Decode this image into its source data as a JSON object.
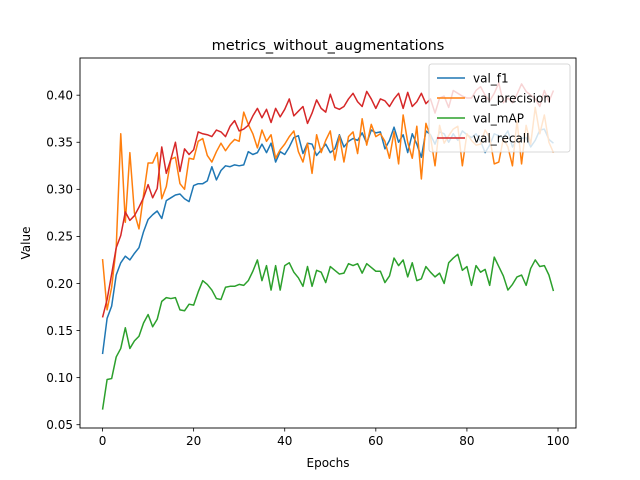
{
  "chart_data": {
    "type": "line",
    "title": "metrics_without_augmentations",
    "xlabel": "Epochs",
    "ylabel": "Value",
    "xlim": [
      -4.95,
      103.95
    ],
    "ylim": [
      0.0465,
      0.4395
    ],
    "xticks": [
      0,
      20,
      40,
      60,
      80,
      100
    ],
    "yticks": [
      0.05,
      0.1,
      0.15,
      0.2,
      0.25,
      0.3,
      0.35,
      0.4
    ],
    "ytick_labels": [
      "0.05",
      "0.10",
      "0.15",
      "0.20",
      "0.25",
      "0.30",
      "0.35",
      "0.40"
    ],
    "legend_position": "top-right",
    "grid": false,
    "series": [
      {
        "name": "val_f1",
        "color": "#1f77b4",
        "values": [
          0.125,
          0.163,
          0.176,
          0.209,
          0.222,
          0.229,
          0.225,
          0.232,
          0.238,
          0.255,
          0.268,
          0.273,
          0.277,
          0.269,
          0.288,
          0.291,
          0.294,
          0.295,
          0.29,
          0.287,
          0.304,
          0.306,
          0.306,
          0.309,
          0.324,
          0.31,
          0.32,
          0.325,
          0.324,
          0.326,
          0.325,
          0.326,
          0.34,
          0.337,
          0.339,
          0.348,
          0.339,
          0.349,
          0.329,
          0.34,
          0.337,
          0.345,
          0.355,
          0.357,
          0.338,
          0.349,
          0.348,
          0.336,
          0.342,
          0.348,
          0.339,
          0.343,
          0.358,
          0.345,
          0.351,
          0.354,
          0.352,
          0.36,
          0.349,
          0.363,
          0.36,
          0.361,
          0.343,
          0.352,
          0.366,
          0.35,
          0.358,
          0.339,
          0.359,
          0.348,
          0.334,
          0.362,
          0.358,
          0.348,
          0.361,
          0.359,
          0.35,
          0.359,
          0.352,
          0.362,
          0.358,
          0.355,
          0.359,
          0.351,
          0.339,
          0.347,
          0.359,
          0.357,
          0.355,
          0.362,
          0.345,
          0.353,
          0.354,
          0.355,
          0.345,
          0.352,
          0.363,
          0.364,
          0.353,
          0.349
        ]
      },
      {
        "name": "val_precision",
        "color": "#ff7f0e",
        "values": [
          0.226,
          0.172,
          0.196,
          0.238,
          0.359,
          0.265,
          0.339,
          0.275,
          0.258,
          0.294,
          0.328,
          0.328,
          0.339,
          0.29,
          0.303,
          0.332,
          0.334,
          0.306,
          0.3,
          0.333,
          0.332,
          0.351,
          0.354,
          0.336,
          0.329,
          0.34,
          0.349,
          0.341,
          0.348,
          0.353,
          0.351,
          0.382,
          0.369,
          0.359,
          0.344,
          0.363,
          0.351,
          0.358,
          0.333,
          0.342,
          0.348,
          0.356,
          0.362,
          0.34,
          0.329,
          0.349,
          0.317,
          0.358,
          0.339,
          0.352,
          0.362,
          0.331,
          0.357,
          0.329,
          0.356,
          0.361,
          0.338,
          0.375,
          0.347,
          0.369,
          0.356,
          0.359,
          0.351,
          0.333,
          0.361,
          0.327,
          0.379,
          0.35,
          0.333,
          0.367,
          0.311,
          0.37,
          0.356,
          0.325,
          0.368,
          0.349,
          0.357,
          0.364,
          0.367,
          0.325,
          0.359,
          0.352,
          0.347,
          0.348,
          0.363,
          0.355,
          0.327,
          0.329,
          0.354,
          0.345,
          0.325,
          0.373,
          0.327,
          0.368,
          0.348,
          0.387,
          0.359,
          0.379,
          0.35,
          0.339
        ]
      },
      {
        "name": "val_mAP",
        "color": "#2ca02c",
        "values": [
          0.066,
          0.098,
          0.099,
          0.122,
          0.131,
          0.153,
          0.131,
          0.139,
          0.144,
          0.158,
          0.167,
          0.154,
          0.162,
          0.181,
          0.185,
          0.184,
          0.185,
          0.172,
          0.171,
          0.178,
          0.177,
          0.191,
          0.203,
          0.199,
          0.193,
          0.184,
          0.183,
          0.196,
          0.197,
          0.197,
          0.199,
          0.198,
          0.203,
          0.213,
          0.225,
          0.203,
          0.219,
          0.193,
          0.219,
          0.193,
          0.219,
          0.222,
          0.212,
          0.206,
          0.197,
          0.218,
          0.197,
          0.214,
          0.212,
          0.201,
          0.218,
          0.214,
          0.21,
          0.211,
          0.221,
          0.219,
          0.221,
          0.211,
          0.221,
          0.217,
          0.213,
          0.213,
          0.201,
          0.208,
          0.227,
          0.219,
          0.225,
          0.207,
          0.222,
          0.203,
          0.205,
          0.218,
          0.212,
          0.207,
          0.211,
          0.2,
          0.222,
          0.227,
          0.231,
          0.214,
          0.218,
          0.198,
          0.219,
          0.212,
          0.215,
          0.198,
          0.228,
          0.218,
          0.208,
          0.193,
          0.199,
          0.207,
          0.209,
          0.198,
          0.216,
          0.225,
          0.218,
          0.219,
          0.209,
          0.192
        ]
      },
      {
        "name": "val_recall",
        "color": "#d62728",
        "values": [
          0.164,
          0.183,
          0.21,
          0.238,
          0.251,
          0.276,
          0.267,
          0.272,
          0.281,
          0.291,
          0.305,
          0.291,
          0.301,
          0.345,
          0.317,
          0.332,
          0.35,
          0.319,
          0.343,
          0.337,
          0.342,
          0.361,
          0.359,
          0.358,
          0.356,
          0.363,
          0.361,
          0.356,
          0.367,
          0.373,
          0.362,
          0.364,
          0.368,
          0.378,
          0.386,
          0.376,
          0.385,
          0.371,
          0.386,
          0.377,
          0.385,
          0.396,
          0.378,
          0.383,
          0.388,
          0.37,
          0.381,
          0.395,
          0.386,
          0.382,
          0.401,
          0.387,
          0.385,
          0.388,
          0.396,
          0.402,
          0.393,
          0.388,
          0.404,
          0.396,
          0.386,
          0.396,
          0.394,
          0.388,
          0.396,
          0.402,
          0.386,
          0.403,
          0.388,
          0.393,
          0.402,
          0.391,
          0.396,
          0.381,
          0.397,
          0.399,
          0.387,
          0.405,
          0.402,
          0.399,
          0.397,
          0.397,
          0.405,
          0.409,
          0.4,
          0.394,
          0.402,
          0.413,
          0.392,
          0.397,
          0.392,
          0.401,
          0.412,
          0.404,
          0.4,
          0.396,
          0.388,
          0.405,
          0.393,
          0.405
        ]
      }
    ]
  }
}
